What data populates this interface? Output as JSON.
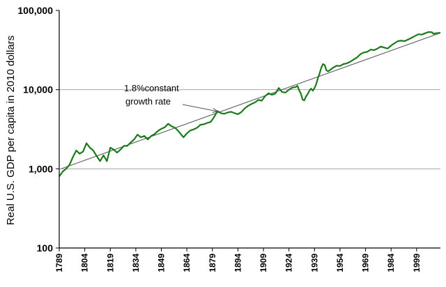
{
  "chart_data": {
    "type": "line",
    "title": "",
    "xlabel": "",
    "ylabel": "Real U.S. GDP per capita in 2010 dollars",
    "y_scale": "log",
    "ylim": [
      100,
      100000
    ],
    "xlim": [
      1789,
      2013
    ],
    "grid": "horizontal",
    "legend": "none",
    "y_ticks": [
      "100",
      "1,000",
      "10,000",
      "100,000"
    ],
    "y_tick_values": [
      100,
      1000,
      10000,
      100000
    ],
    "x_ticks": [
      "1789",
      "1804",
      "1819",
      "1834",
      "1849",
      "1864",
      "1879",
      "1894",
      "1909",
      "1924",
      "1939",
      "1954",
      "1969",
      "1984",
      "1999"
    ],
    "x_tick_values": [
      1789,
      1804,
      1819,
      1834,
      1849,
      1864,
      1879,
      1894,
      1909,
      1924,
      1939,
      1954,
      1969,
      1984,
      1999
    ],
    "annotation": {
      "line1": "1.8%constant",
      "line2": "growth rate",
      "target_year": 1883
    },
    "series": [
      {
        "color": "#1a7a1a",
        "x": [
          1789,
          1791,
          1793,
          1795,
          1797,
          1799,
          1801,
          1803,
          1805,
          1807,
          1809,
          1811,
          1813,
          1815,
          1817,
          1819,
          1821,
          1823,
          1825,
          1827,
          1829,
          1831,
          1833,
          1835,
          1837,
          1839,
          1841,
          1843,
          1845,
          1847,
          1849,
          1851,
          1853,
          1855,
          1857,
          1859,
          1861,
          1862,
          1864,
          1866,
          1868,
          1870,
          1872,
          1874,
          1876,
          1878,
          1880,
          1882,
          1884,
          1886,
          1888,
          1890,
          1892,
          1894,
          1896,
          1898,
          1900,
          1902,
          1904,
          1906,
          1908,
          1910,
          1912,
          1914,
          1916,
          1918,
          1920,
          1922,
          1924,
          1926,
          1928,
          1929,
          1930,
          1931,
          1932,
          1933,
          1934,
          1935,
          1936,
          1937,
          1938,
          1939,
          1940,
          1941,
          1942,
          1943,
          1944,
          1945,
          1946,
          1947,
          1948,
          1950,
          1952,
          1954,
          1956,
          1958,
          1960,
          1962,
          1964,
          1966,
          1968,
          1970,
          1972,
          1974,
          1976,
          1978,
          1980,
          1982,
          1984,
          1986,
          1988,
          1990,
          1992,
          1994,
          1996,
          1998,
          2000,
          2002,
          2004,
          2006,
          2008,
          2009,
          2010,
          2012,
          2013
        ],
        "y": [
          800,
          920,
          1000,
          1120,
          1400,
          1700,
          1550,
          1650,
          2100,
          1850,
          1700,
          1450,
          1250,
          1480,
          1250,
          1850,
          1750,
          1600,
          1750,
          1950,
          1950,
          2150,
          2350,
          2700,
          2500,
          2600,
          2350,
          2600,
          2750,
          3000,
          3200,
          3350,
          3700,
          3450,
          3300,
          3000,
          2650,
          2500,
          2800,
          3050,
          3150,
          3300,
          3600,
          3650,
          3800,
          3900,
          4500,
          5350,
          5050,
          4950,
          5150,
          5250,
          5050,
          4900,
          5200,
          5800,
          6250,
          6600,
          6900,
          7400,
          7250,
          8300,
          9000,
          8600,
          8900,
          10500,
          9300,
          9200,
          10000,
          10600,
          10800,
          11200,
          9800,
          8900,
          7500,
          7300,
          8200,
          8800,
          9700,
          10300,
          9700,
          10500,
          11700,
          14000,
          16000,
          19000,
          21000,
          20500,
          17500,
          17000,
          17600,
          19000,
          20000,
          19900,
          21000,
          21500,
          22500,
          24000,
          25500,
          28000,
          29500,
          30000,
          32000,
          31500,
          33000,
          35000,
          34000,
          33000,
          36000,
          38500,
          41000,
          41500,
          41000,
          43000,
          45000,
          47500,
          50000,
          49500,
          51500,
          53500,
          53000,
          50500,
          51500,
          52000,
          52500
        ]
      }
    ],
    "trendline": {
      "x": [
        1790,
        2013
      ],
      "y": [
        1000,
        52000
      ],
      "color": "#555555"
    }
  }
}
